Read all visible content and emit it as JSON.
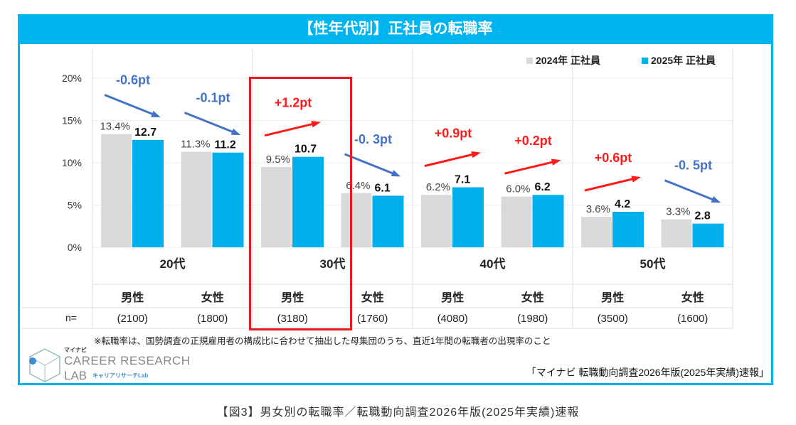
{
  "title": "【性年代別】正社員の転職率",
  "chart_data": {
    "type": "bar",
    "title": "【性年代別】正社員の転職率",
    "y_ticks": [
      "0%",
      "5%",
      "10%",
      "15%",
      "20%"
    ],
    "ylim": [
      0,
      20
    ],
    "grid": true,
    "legend_position": "top-right",
    "age_groups": [
      "20代",
      "30代",
      "40代",
      "50代"
    ],
    "genders": [
      "男性",
      "女性",
      "男性",
      "女性",
      "男性",
      "女性",
      "男性",
      "女性"
    ],
    "n_label": "n=",
    "n_values": [
      "(2100)",
      "(1800)",
      "(3180)",
      "(1760)",
      "(4080)",
      "(1980)",
      "(3500)",
      "(1600)"
    ],
    "series": [
      {
        "name": "2024年 正社員",
        "color": "#d9d9d9",
        "values": [
          13.4,
          11.3,
          9.5,
          6.4,
          6.2,
          6.0,
          3.6,
          3.3
        ],
        "labels": [
          "13.4%",
          "11.3%",
          "9.5%",
          "6.4%",
          "6.2%",
          "6.0%",
          "3.6%",
          "3.3%"
        ]
      },
      {
        "name": "2025年 正社員",
        "color": "#00b0ec",
        "values": [
          12.7,
          11.2,
          10.7,
          6.1,
          7.1,
          6.2,
          4.2,
          2.8
        ],
        "labels": [
          "12.7",
          "11.2",
          "10.7",
          "6.1",
          "7.1",
          "6.2",
          "4.2",
          "2.8"
        ]
      }
    ],
    "changes": [
      "-0.6pt",
      "-0.1pt",
      "+1.2pt",
      "-0. 3pt",
      "+0.9pt",
      "+0.2pt",
      "+0.6pt",
      "-0. 5pt"
    ],
    "change_colors": {
      "up": "#ff1a1a",
      "down": "#4472c4"
    },
    "highlight": "30代 男性"
  },
  "footnote": "※転職率は、国勢調査の正規雇用者の構成比に合わせて抽出した母集団のうち、直近1年間の転職者の出現率のこと",
  "source": "「マイナビ 転職動向調査2026年版(2025年実績)速報」",
  "logo": {
    "brand": "マイナビ",
    "line1": "CAREER RESEARCH",
    "line2": "LAB",
    "sub": "キャリアリサーチLab"
  },
  "caption": "【図3】男女別の転職率／転職動向調査2026年版(2025年実績)速報"
}
